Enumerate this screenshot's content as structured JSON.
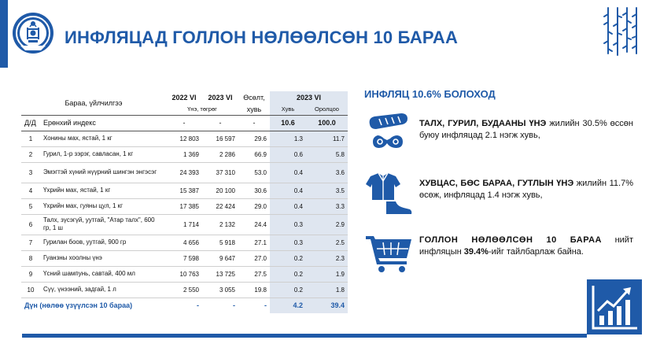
{
  "header": {
    "title": "ИНФЛЯЦАД ГОЛЛОН НӨЛӨӨЛСӨН 10 БАРАА"
  },
  "table": {
    "col_item": "Бараа, үйлчилгээ",
    "col_2022": "2022 VI",
    "col_2023": "2023 VI",
    "col_growth_1": "Өсөлт,",
    "col_growth_2": "хувь",
    "col_2023b": "2023 VI",
    "sub_unit": "Үнэ, төгрөг",
    "sub_share": "Хувь",
    "sub_contrib": "Оролцоо",
    "dd": "Д/Д",
    "general": {
      "name": "Ерөнхий индекс",
      "p2022": "-",
      "p2023": "-",
      "growth": "-",
      "share": "10.6",
      "contrib": "100.0"
    },
    "rows": [
      {
        "no": "1",
        "name": "Хонины мах, ястай, 1 кг",
        "p2022": "12 803",
        "p2023": "16 597",
        "growth": "29.6",
        "share": "1.3",
        "contrib": "11.7"
      },
      {
        "no": "2",
        "name": "Гурил, 1-р зэрэг, савласан, 1 кг",
        "p2022": "1 369",
        "p2023": "2 286",
        "growth": "66.9",
        "share": "0.6",
        "contrib": "5.8"
      },
      {
        "no": "3",
        "name": "Эмэгтэй хүний нүүрний шингэн энгэсэг",
        "p2022": "24 393",
        "p2023": "37 310",
        "growth": "53.0",
        "share": "0.4",
        "contrib": "3.6"
      },
      {
        "no": "4",
        "name": "Үхрийн мах, ястай, 1 кг",
        "p2022": "15 387",
        "p2023": "20 100",
        "growth": "30.6",
        "share": "0.4",
        "contrib": "3.5"
      },
      {
        "no": "5",
        "name": "Үхрийн мах, гуяны цул, 1 кг",
        "p2022": "17 385",
        "p2023": "22 424",
        "growth": "29.0",
        "share": "0.4",
        "contrib": "3.3"
      },
      {
        "no": "6",
        "name": "Талх, зүсэгүй, уутгай, \"Атар талх\", 600 гр, 1 ш",
        "p2022": "1 714",
        "p2023": "2 132",
        "growth": "24.4",
        "share": "0.3",
        "contrib": "2.9"
      },
      {
        "no": "7",
        "name": "Гурилан боов, уутгай, 900 гр",
        "p2022": "4 656",
        "p2023": "5 918",
        "growth": "27.1",
        "share": "0.3",
        "contrib": "2.5"
      },
      {
        "no": "8",
        "name": "Гуанзны хоолны үнэ",
        "p2022": "7 598",
        "p2023": "9 647",
        "growth": "27.0",
        "share": "0.2",
        "contrib": "2.3"
      },
      {
        "no": "9",
        "name": "Үсний шампунь, савтай, 400 мл",
        "p2022": "10 763",
        "p2023": "13 725",
        "growth": "27.5",
        "share": "0.2",
        "contrib": "1.9"
      },
      {
        "no": "10",
        "name": "Сүү, үнээний, задгай, 1 л",
        "p2022": "2 550",
        "p2023": "3 055",
        "growth": "19.8",
        "share": "0.2",
        "contrib": "1.8"
      }
    ],
    "total": {
      "name": "Дүн (нөлөө үзүүлсэн 10 бараа)",
      "p2022": "-",
      "p2023": "-",
      "growth": "-",
      "share": "4.2",
      "contrib": "39.4"
    }
  },
  "side": {
    "title": "ИНФЛЯЦ 10.6% БОЛОХОД",
    "b1_bold": "ТАЛХ, ГУРИЛ, БУДААНЫ ҮНЭ",
    "b1_text": " жилийн 30.5% өссөн буюу инфляцад 2.1 нэгж хувь,",
    "b2_bold": "ХУВЦАС, БӨС БАРАА, ГУТЛЫН ҮНЭ",
    "b2_text": " жилийн 11.7% өсөж, инфляцад 1.4 нэгж хувь,",
    "b3_bold": "ГОЛЛОН НӨЛӨӨЛСӨН 10 БАРАА",
    "b3_mid": " нийт инфляцын ",
    "b3_pct": "39.4%",
    "b3_end": "-ийг тайлбарлаж байна."
  },
  "icons": {
    "emblem": "soyombo-emblem-icon",
    "script": "mongolian-script-icon",
    "bread": "bread-icon",
    "clothes": "clothes-shoe-icon",
    "cart": "shopping-cart-icon",
    "chart": "growth-chart-icon"
  },
  "colors": {
    "brand": "#1f5aa8",
    "shade": "#dfe6f0"
  }
}
